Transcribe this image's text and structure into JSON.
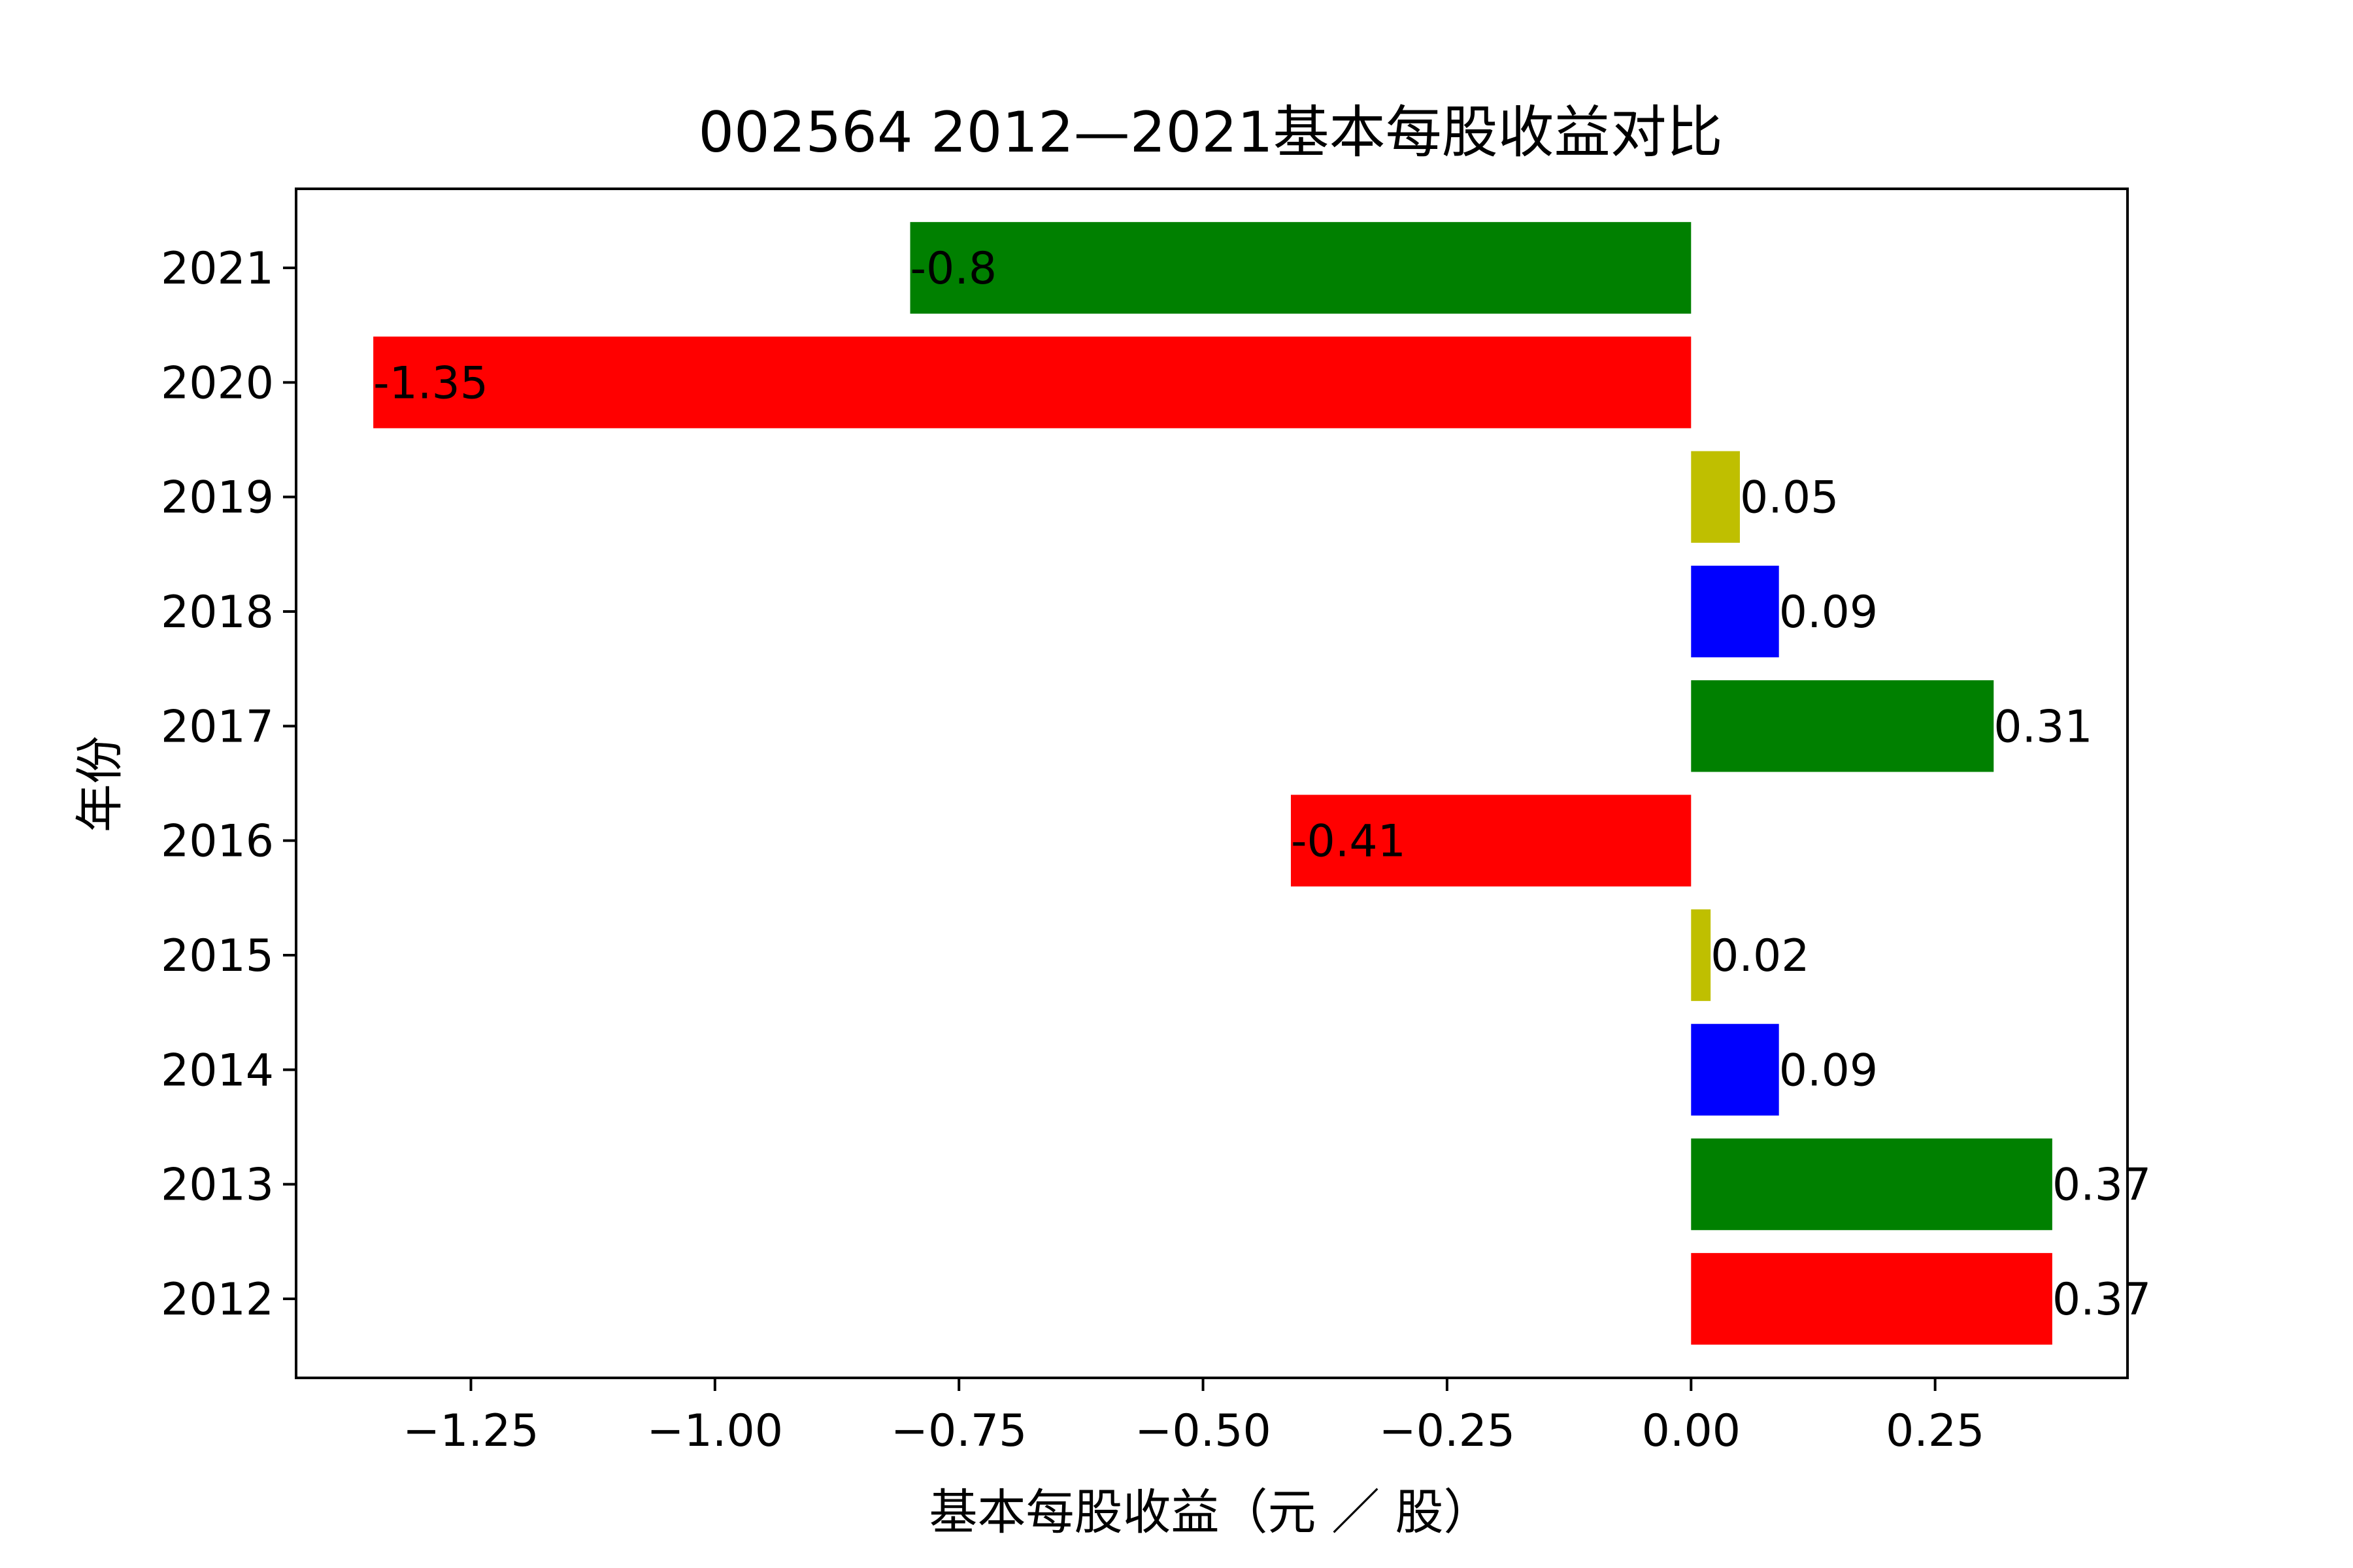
{
  "chart_data": {
    "type": "bar",
    "orientation": "horizontal",
    "title": "002564 2012—2021基本每股收益对比",
    "xlabel": "基本每股收益（元 ／ 股）",
    "ylabel": "年份",
    "categories": [
      "2012",
      "2013",
      "2014",
      "2015",
      "2016",
      "2017",
      "2018",
      "2019",
      "2020",
      "2021"
    ],
    "values": [
      0.37,
      0.37,
      0.09,
      0.02,
      -0.41,
      0.31,
      0.09,
      0.05,
      -1.35,
      -0.8
    ],
    "data_labels": [
      "0.37",
      "0.37",
      "0.09",
      "0.02",
      "-0.41",
      "0.31",
      "0.09",
      "0.05",
      "-1.35",
      "-0.8"
    ],
    "colors": [
      "#ff0000",
      "#008000",
      "#0000ff",
      "#bfbf00",
      "#ff0000",
      "#008000",
      "#0000ff",
      "#bfbf00",
      "#ff0000",
      "#008000"
    ],
    "xlim": [
      -1.4291,
      0.4471
    ],
    "xticks": [
      -1.25,
      -1.0,
      -0.75,
      -0.5,
      -0.25,
      0.0,
      0.25
    ],
    "xtick_labels": [
      "−1.25",
      "−1.00",
      "−0.75",
      "−0.50",
      "−0.25",
      "0.00",
      "0.25"
    ],
    "grid": false,
    "legend": "none"
  }
}
